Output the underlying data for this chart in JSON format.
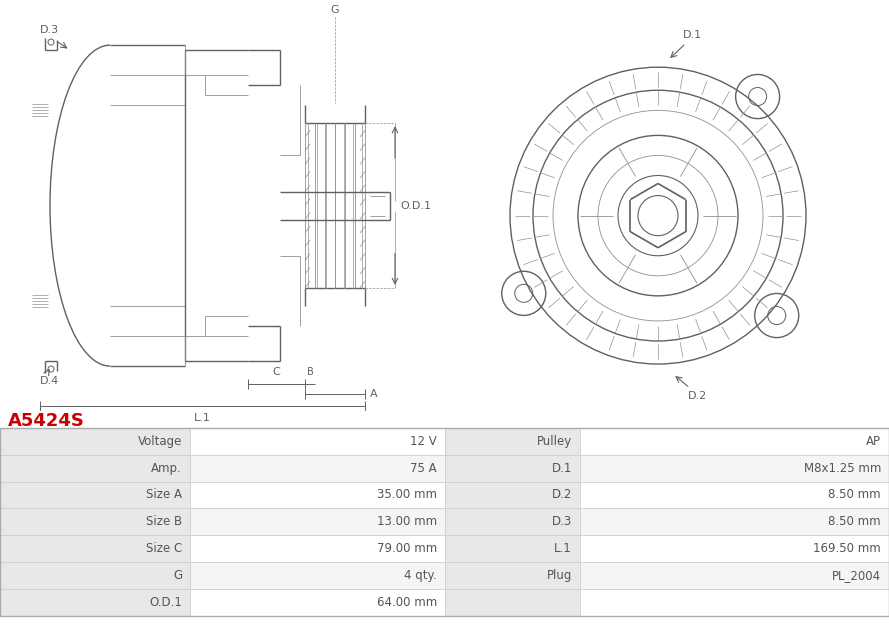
{
  "title": "A5424S",
  "title_color": "#cc0000",
  "table_rows": [
    [
      "Voltage",
      "12 V",
      "Pulley",
      "AP"
    ],
    [
      "Amp.",
      "75 A",
      "D.1",
      "M8x1.25 mm"
    ],
    [
      "Size A",
      "35.00 mm",
      "D.2",
      "8.50 mm"
    ],
    [
      "Size B",
      "13.00 mm",
      "D.3",
      "8.50 mm"
    ],
    [
      "Size C",
      "79.00 mm",
      "L.1",
      "169.50 mm"
    ],
    [
      "G",
      "4 qty.",
      "Plug",
      "PL_2004"
    ],
    [
      "O.D.1",
      "64.00 mm",
      "",
      ""
    ]
  ],
  "bg_color": "#ffffff",
  "border_color": "#cccccc",
  "label_bg": "#e8e8e8",
  "row_bg_alt": "#f0f0f0",
  "text_color": "#555555",
  "table_fontsize": 8.5,
  "title_fontsize": 13
}
